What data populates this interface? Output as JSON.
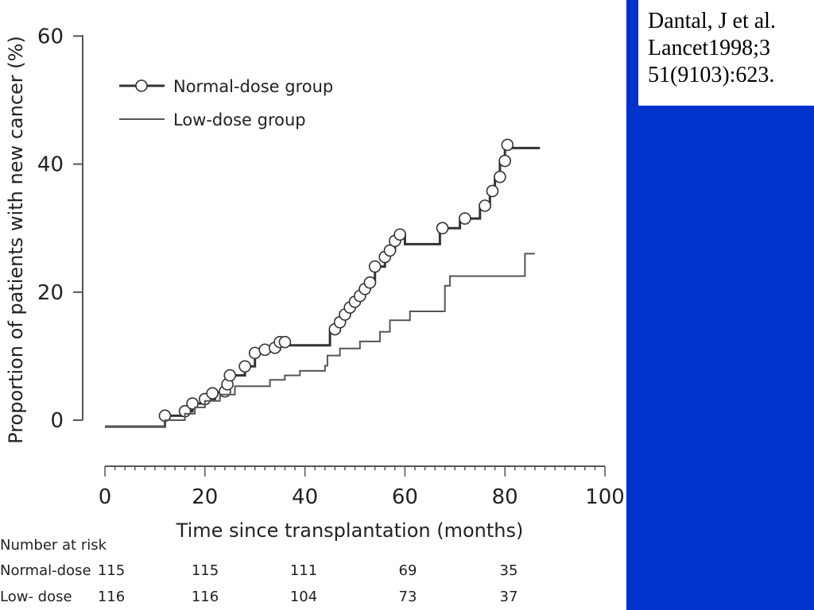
{
  "colors": {
    "panel_blue": "#0033cc",
    "curve": "#333333",
    "marker_fill": "#ffffff",
    "axis": "#555555"
  },
  "citation": {
    "line1": "Dantal, J et al.",
    "line2": "Lancet1998;3",
    "line3": "51(9103):623."
  },
  "chart_data": {
    "type": "line",
    "xlabel": "Time since transplantation (months)",
    "ylabel": "Proportion of patients with new cancer (%)",
    "xlim": [
      0,
      100
    ],
    "ylim": [
      -2,
      60
    ],
    "x_ticks": [
      "0",
      "20",
      "40",
      "60",
      "80",
      "100"
    ],
    "x_tick_values": [
      0,
      20,
      40,
      60,
      80,
      100
    ],
    "y_ticks": [
      "0",
      "20",
      "40",
      "60"
    ],
    "y_tick_values": [
      0,
      20,
      40,
      60
    ],
    "legend_position": "top-left",
    "series": [
      {
        "name": "Normal-dose group",
        "style": "step-with-circles",
        "steps": [
          [
            0,
            -1
          ],
          [
            12,
            -1
          ],
          [
            12,
            0.7
          ],
          [
            16,
            0.7
          ],
          [
            16,
            1.4
          ],
          [
            17.5,
            1.4
          ],
          [
            17.5,
            2.6
          ],
          [
            20,
            2.6
          ],
          [
            20,
            3.3
          ],
          [
            22,
            3.3
          ],
          [
            22,
            4.3
          ],
          [
            24,
            4.3
          ],
          [
            24,
            5.6
          ],
          [
            25,
            5.6
          ],
          [
            25,
            7
          ],
          [
            28,
            7
          ],
          [
            28,
            8.4
          ],
          [
            30,
            8.4
          ],
          [
            30,
            10.5
          ],
          [
            32,
            10.5
          ],
          [
            32,
            11
          ],
          [
            35,
            11
          ],
          [
            35,
            12
          ],
          [
            36,
            12
          ],
          [
            36,
            11.7
          ],
          [
            45,
            11.7
          ],
          [
            45,
            14
          ],
          [
            47,
            14
          ],
          [
            47,
            15.3
          ],
          [
            48,
            15.3
          ],
          [
            48,
            16.5
          ],
          [
            49,
            16.5
          ],
          [
            49,
            17.6
          ],
          [
            50,
            17.6
          ],
          [
            50,
            18.5
          ],
          [
            51,
            18.5
          ],
          [
            51,
            19.4
          ],
          [
            52,
            19.4
          ],
          [
            52,
            20.5
          ],
          [
            53,
            20.5
          ],
          [
            53,
            21.5
          ],
          [
            54,
            21.5
          ],
          [
            54,
            24
          ],
          [
            56,
            24
          ],
          [
            56,
            25.5
          ],
          [
            57,
            25.5
          ],
          [
            57,
            26.5
          ],
          [
            58,
            26.5
          ],
          [
            58,
            28
          ],
          [
            59,
            28
          ],
          [
            59,
            29
          ],
          [
            60,
            29
          ],
          [
            60,
            27.5
          ],
          [
            67,
            27.5
          ],
          [
            67,
            30
          ],
          [
            71,
            30
          ],
          [
            71,
            31.5
          ],
          [
            75,
            31.5
          ],
          [
            75,
            33.5
          ],
          [
            77,
            33.5
          ],
          [
            77,
            35.8
          ],
          [
            78,
            35.8
          ],
          [
            78,
            38
          ],
          [
            79,
            38
          ],
          [
            79,
            40.5
          ],
          [
            80,
            40.5
          ],
          [
            80,
            42.5
          ],
          [
            87,
            42.5
          ]
        ],
        "markers": [
          [
            12,
            0.7
          ],
          [
            16,
            1.4
          ],
          [
            17.5,
            2.6
          ],
          [
            20,
            3.3
          ],
          [
            21.5,
            4.2
          ],
          [
            24,
            4.5
          ],
          [
            24.5,
            5.6
          ],
          [
            25,
            7
          ],
          [
            28,
            8.4
          ],
          [
            30,
            10.5
          ],
          [
            32,
            11
          ],
          [
            34,
            11.3
          ],
          [
            35,
            12.2
          ],
          [
            36,
            12.2
          ],
          [
            46,
            14.2
          ],
          [
            47,
            15.3
          ],
          [
            48,
            16.5
          ],
          [
            49,
            17.6
          ],
          [
            50,
            18.5
          ],
          [
            51,
            19.4
          ],
          [
            52,
            20.5
          ],
          [
            53,
            21.5
          ],
          [
            54,
            24
          ],
          [
            56,
            25.5
          ],
          [
            57,
            26.5
          ],
          [
            58,
            28
          ],
          [
            59,
            29
          ],
          [
            67.5,
            30
          ],
          [
            72,
            31.5
          ],
          [
            76,
            33.5
          ],
          [
            77.5,
            35.8
          ],
          [
            79,
            38
          ],
          [
            80,
            40.5
          ],
          [
            80.5,
            43
          ]
        ]
      },
      {
        "name": "Low-dose group",
        "style": "step",
        "steps": [
          [
            0,
            -1
          ],
          [
            12,
            -1
          ],
          [
            12,
            0
          ],
          [
            16,
            0
          ],
          [
            16,
            1
          ],
          [
            18,
            1
          ],
          [
            18,
            2
          ],
          [
            20,
            2
          ],
          [
            20,
            3
          ],
          [
            23,
            3
          ],
          [
            23,
            4
          ],
          [
            26,
            4
          ],
          [
            26,
            5.3
          ],
          [
            33,
            5.3
          ],
          [
            33,
            6.3
          ],
          [
            36,
            6.3
          ],
          [
            36,
            7
          ],
          [
            39,
            7
          ],
          [
            39,
            7.7
          ],
          [
            44,
            7.7
          ],
          [
            44,
            8.5
          ],
          [
            44.5,
            8.5
          ],
          [
            44.5,
            10.1
          ],
          [
            47,
            10.1
          ],
          [
            47,
            11.2
          ],
          [
            51,
            11.2
          ],
          [
            51,
            12.3
          ],
          [
            55,
            12.3
          ],
          [
            55,
            13.8
          ],
          [
            57,
            13.8
          ],
          [
            57,
            15.6
          ],
          [
            61,
            15.6
          ],
          [
            61,
            17
          ],
          [
            68,
            17
          ],
          [
            68,
            21
          ],
          [
            69,
            21
          ],
          [
            69,
            22.5
          ],
          [
            84,
            22.5
          ],
          [
            84,
            26
          ],
          [
            86,
            26
          ]
        ]
      }
    ],
    "risk_table": {
      "header": "Number at risk",
      "rows": [
        {
          "label": "Normal-dose",
          "values": [
            "115",
            "115",
            "111",
            "69",
            "35"
          ]
        },
        {
          "label": "Low- dose",
          "values": [
            "116",
            "116",
            "104",
            "73",
            "37"
          ]
        }
      ]
    }
  }
}
